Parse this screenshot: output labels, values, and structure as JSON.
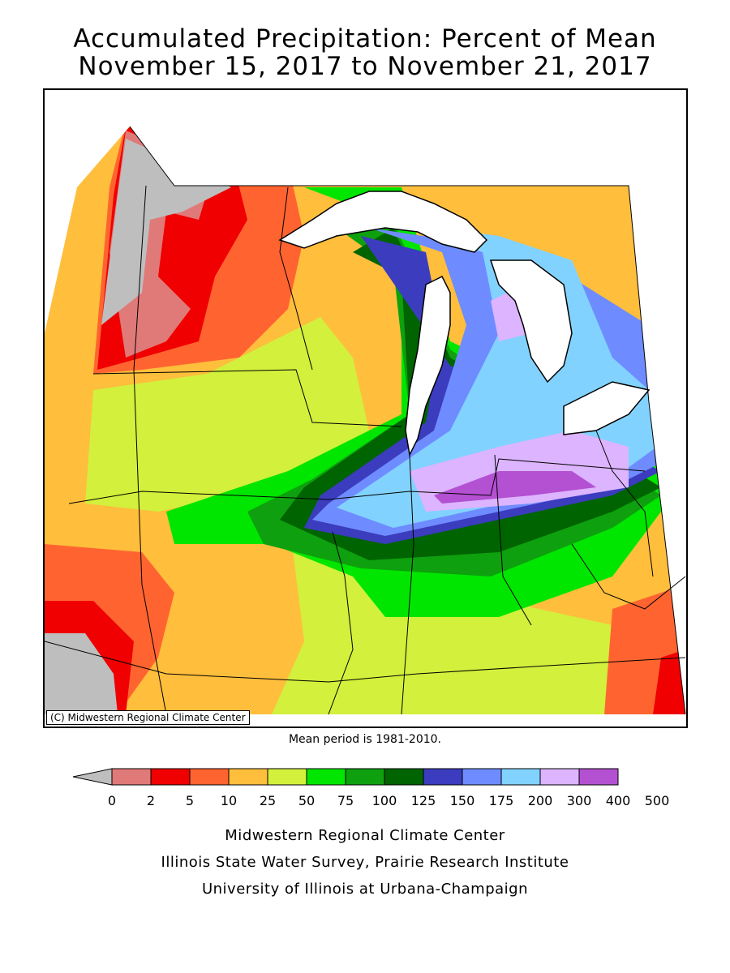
{
  "header": {
    "title_line1": "Accumulated Precipitation: Percent of Mean",
    "title_line2": "November 15, 2017 to November 21, 2017"
  },
  "map": {
    "copyright": "(C) Midwestern Regional Climate Center",
    "mean_period": "Mean period is 1981-2010."
  },
  "legend": {
    "colors": [
      "#bebebe",
      "#e07a78",
      "#f00000",
      "#ff6430",
      "#ffbe3c",
      "#d2f03c",
      "#00e600",
      "#0ea00e",
      "#006400",
      "#3c3cbe",
      "#6e8cff",
      "#82d2ff",
      "#dcb4ff",
      "#b450d2"
    ],
    "labels": [
      "0",
      "2",
      "5",
      "10",
      "25",
      "50",
      "75",
      "100",
      "125",
      "150",
      "175",
      "200",
      "300",
      "400",
      "500"
    ]
  },
  "footer": {
    "line1": "Midwestern Regional Climate Center",
    "line2": "Illinois State Water Survey, Prairie Research Institute",
    "line3": "University of Illinois at Urbana-Champaign"
  }
}
